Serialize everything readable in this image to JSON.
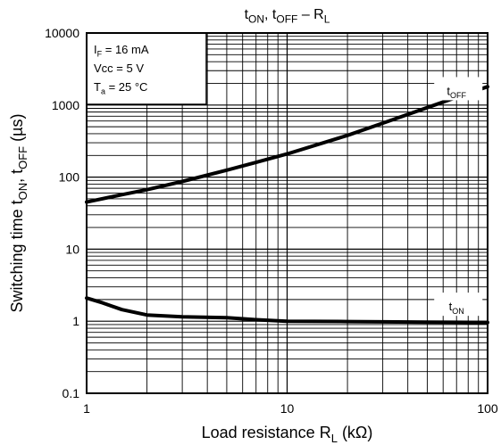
{
  "chart_data": {
    "type": "line",
    "title": {
      "parts": [
        [
          "t",
          ""
        ],
        [
          "ON",
          "sub"
        ],
        [
          ", t",
          ""
        ],
        [
          "OFF",
          "sub"
        ],
        [
          " – R",
          ""
        ],
        [
          "L",
          "sub"
        ]
      ]
    },
    "ylabel": {
      "parts": [
        [
          "Switching time  t",
          ""
        ],
        [
          "ON",
          "sub"
        ],
        [
          ", t",
          ""
        ],
        [
          "OFF",
          "sub"
        ],
        [
          "  (µs)",
          ""
        ]
      ]
    },
    "xlabel": {
      "parts": [
        [
          "Load resistance  R",
          ""
        ],
        [
          "L",
          "sub"
        ],
        [
          "  (kΩ)",
          ""
        ]
      ]
    },
    "xscale": "log",
    "yscale": "log",
    "xlim": [
      1,
      100
    ],
    "ylim": [
      0.1,
      10000
    ],
    "x_ticks": [
      "1",
      "10",
      "100"
    ],
    "y_ticks": [
      "0.1",
      "1",
      "10",
      "100",
      "1000",
      "10000"
    ],
    "grid": true,
    "conditions": [
      {
        "parts": [
          [
            "I",
            ""
          ],
          [
            "F",
            "sub"
          ],
          [
            " = 16 mA",
            ""
          ]
        ]
      },
      {
        "parts": [
          [
            "Vcc = 5 V",
            ""
          ]
        ]
      },
      {
        "parts": [
          [
            "T",
            ""
          ],
          [
            "a",
            "sub"
          ],
          [
            " = 25 °C",
            ""
          ]
        ]
      }
    ],
    "series": [
      {
        "name": "t_OFF",
        "label_parts": [
          [
            "t",
            ""
          ],
          [
            "OFF",
            "sub"
          ]
        ],
        "label_at": [
          70,
          1550
        ],
        "x": [
          1,
          1.5,
          2,
          3,
          5,
          7,
          10,
          20,
          30,
          50,
          70,
          100
        ],
        "y": [
          45,
          57,
          67,
          87,
          125,
          160,
          210,
          380,
          560,
          920,
          1280,
          1800
        ]
      },
      {
        "name": "t_ON",
        "label_parts": [
          [
            "t",
            ""
          ],
          [
            "ON",
            "sub"
          ]
        ],
        "label_at": [
          70,
          1.58
        ],
        "x": [
          1,
          1.2,
          1.5,
          2,
          3,
          5,
          7,
          10,
          20,
          30,
          50,
          100
        ],
        "y": [
          2.1,
          1.8,
          1.45,
          1.22,
          1.15,
          1.12,
          1.05,
          1.0,
          0.99,
          0.98,
          0.97,
          0.96
        ]
      }
    ]
  }
}
